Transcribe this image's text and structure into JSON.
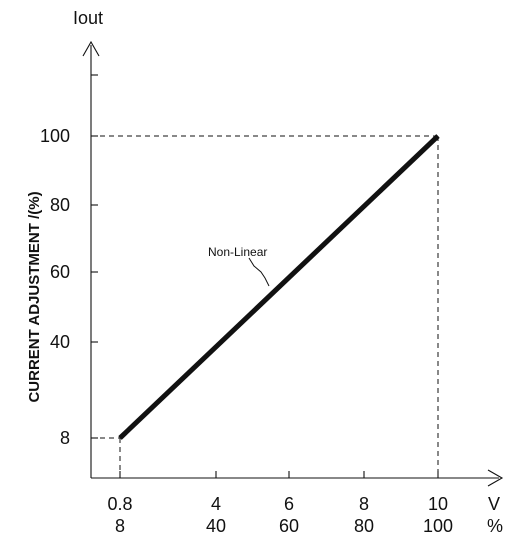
{
  "chart_data": {
    "type": "line",
    "title": "",
    "ylabel": "CURRENT ADJUSTMENT /(%)",
    "yaxis_top_label": "Iout",
    "xaxis_units": {
      "voltage": "V",
      "percent": "%"
    },
    "xlim_voltage": [
      0.4,
      10.8
    ],
    "ylim_percent": [
      0,
      118
    ],
    "x_ticks": [
      {
        "voltage": "0.8",
        "percent": "8"
      },
      {
        "voltage": "4",
        "percent": "40"
      },
      {
        "voltage": "6",
        "percent": "60"
      },
      {
        "voltage": "8",
        "percent": "80"
      },
      {
        "voltage": "10",
        "percent": "100"
      }
    ],
    "y_ticks": [
      "8",
      "40",
      "60",
      "80",
      "100"
    ],
    "series": [
      {
        "x": [
          0.8,
          10
        ],
        "y": [
          8,
          100
        ]
      }
    ],
    "annotations": [
      {
        "text": "Non-Linear"
      }
    ],
    "grid": false
  }
}
